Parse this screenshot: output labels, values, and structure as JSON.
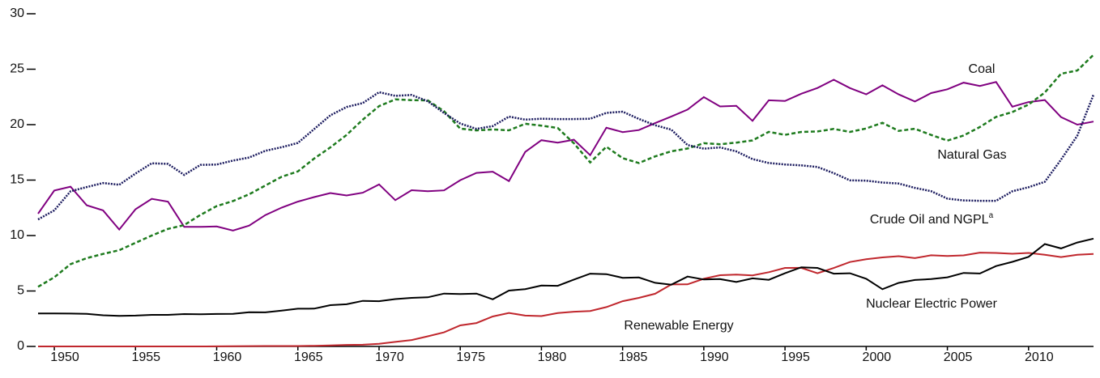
{
  "chart_data": {
    "type": "line",
    "x": [
      1949,
      1950,
      1951,
      1952,
      1953,
      1954,
      1955,
      1956,
      1957,
      1958,
      1959,
      1960,
      1961,
      1962,
      1963,
      1964,
      1965,
      1966,
      1967,
      1968,
      1969,
      1970,
      1971,
      1972,
      1973,
      1974,
      1975,
      1976,
      1977,
      1978,
      1979,
      1980,
      1981,
      1982,
      1983,
      1984,
      1985,
      1986,
      1987,
      1988,
      1989,
      1990,
      1991,
      1992,
      1993,
      1994,
      1995,
      1996,
      1997,
      1998,
      1999,
      2000,
      2001,
      2002,
      2003,
      2004,
      2005,
      2006,
      2007,
      2008,
      2009,
      2010,
      2011,
      2012,
      2013,
      2014
    ],
    "xlim": [
      1949,
      2014
    ],
    "xticks": [
      1950,
      1955,
      1960,
      1965,
      1970,
      1975,
      1980,
      1985,
      1990,
      1995,
      2000,
      2005,
      2010
    ],
    "ylim": [
      0,
      30
    ],
    "yticks": [
      0,
      5,
      10,
      15,
      20,
      25,
      30
    ],
    "footnote_mark": "a",
    "series": [
      {
        "name": "Coal",
        "color": "#800080",
        "style": "solid",
        "values": [
          11.97,
          14.06,
          14.41,
          12.73,
          12.27,
          10.54,
          12.37,
          13.31,
          13.06,
          10.78,
          10.78,
          10.82,
          10.45,
          10.9,
          11.85,
          12.52,
          13.06,
          13.47,
          13.83,
          13.61,
          13.86,
          14.61,
          13.19,
          14.09,
          13.99,
          14.07,
          14.99,
          15.65,
          15.76,
          14.91,
          17.54,
          18.6,
          18.38,
          18.64,
          17.25,
          19.72,
          19.33,
          19.51,
          20.14,
          20.74,
          21.36,
          22.49,
          21.64,
          21.69,
          20.34,
          22.2,
          22.13,
          22.79,
          23.31,
          24.05,
          23.3,
          22.74,
          23.55,
          22.73,
          22.09,
          22.85,
          23.19,
          23.79,
          23.49,
          23.85,
          21.62,
          22.04,
          22.22,
          20.68,
          20,
          20.28
        ]
      },
      {
        "name": "Natural Gas",
        "color": "#1e7b1e",
        "style": "dashed",
        "values": [
          5.38,
          6.23,
          7.42,
          7.96,
          8.34,
          8.68,
          9.34,
          10,
          10.6,
          10.94,
          11.86,
          12.66,
          13.11,
          13.72,
          14.51,
          15.3,
          15.78,
          16.94,
          17.95,
          19.07,
          20.45,
          21.67,
          22.28,
          22.21,
          22.19,
          21.21,
          19.64,
          19.48,
          19.57,
          19.49,
          20.08,
          19.91,
          19.7,
          18.32,
          16.59,
          18.01,
          16.98,
          16.54,
          17.14,
          17.6,
          17.85,
          18.33,
          18.23,
          18.38,
          18.58,
          19.35,
          19.08,
          19.34,
          19.39,
          19.61,
          19.34,
          19.66,
          20.17,
          19.44,
          19.63,
          19.07,
          18.56,
          19.02,
          19.79,
          20.7,
          21.14,
          21.81,
          22.9,
          24.59,
          24.88,
          26.3
        ]
      },
      {
        "name": "Crude Oil and NGPL",
        "color": "#1a1a5e",
        "style": "dotted",
        "values": [
          11.45,
          12.27,
          13.99,
          14.37,
          14.74,
          14.58,
          15.59,
          16.52,
          16.46,
          15.47,
          16.37,
          16.4,
          16.76,
          17.04,
          17.64,
          17.96,
          18.35,
          19.6,
          20.84,
          21.59,
          21.95,
          22.93,
          22.6,
          22.68,
          22.11,
          21.05,
          20.1,
          19.62,
          19.87,
          20.72,
          20.45,
          20.53,
          20.5,
          20.5,
          20.53,
          21.06,
          21.17,
          20.52,
          19.95,
          19.55,
          18.16,
          17.83,
          17.95,
          17.59,
          16.9,
          16.54,
          16.41,
          16.33,
          16.18,
          15.63,
          14.98,
          14.95,
          14.78,
          14.69,
          14.3,
          14,
          13.33,
          13.17,
          13.13,
          13.13,
          13.99,
          14.36,
          14.85,
          16.85,
          19.01,
          22.7
        ]
      },
      {
        "name": "Nuclear Electric Power",
        "color": "#c0272d",
        "style": "solid",
        "values": [
          0,
          0,
          0,
          0,
          0,
          0,
          0,
          0,
          0,
          0,
          0,
          0.01,
          0.02,
          0.03,
          0.04,
          0.04,
          0.04,
          0.06,
          0.09,
          0.14,
          0.15,
          0.24,
          0.41,
          0.58,
          0.91,
          1.27,
          1.9,
          2.11,
          2.7,
          3.02,
          2.78,
          2.74,
          3.01,
          3.13,
          3.2,
          3.55,
          4.08,
          4.38,
          4.75,
          5.59,
          5.6,
          6.1,
          6.42,
          6.48,
          6.41,
          6.69,
          7.08,
          7.09,
          6.6,
          7.07,
          7.61,
          7.86,
          8.03,
          8.14,
          7.96,
          8.22,
          8.16,
          8.21,
          8.46,
          8.43,
          8.36,
          8.43,
          8.27,
          8.06,
          8.27,
          8.34
        ]
      },
      {
        "name": "Renewable Energy",
        "color": "#000000",
        "style": "solid",
        "values": [
          2.97,
          2.98,
          2.96,
          2.94,
          2.81,
          2.75,
          2.78,
          2.85,
          2.85,
          2.92,
          2.9,
          2.93,
          2.94,
          3.09,
          3.07,
          3.23,
          3.4,
          3.41,
          3.72,
          3.8,
          4.11,
          4.08,
          4.27,
          4.38,
          4.43,
          4.77,
          4.72,
          4.77,
          4.25,
          5.04,
          5.17,
          5.49,
          5.47,
          6.03,
          6.56,
          6.52,
          6.19,
          6.22,
          5.74,
          5.57,
          6.3,
          6.04,
          6.07,
          5.82,
          6.14,
          6.01,
          6.6,
          7.14,
          7.08,
          6.56,
          6.6,
          6.1,
          5.16,
          5.73,
          5.99,
          6.07,
          6.23,
          6.63,
          6.58,
          7.25,
          7.63,
          8.08,
          9.23,
          8.84,
          9.37,
          9.72
        ]
      }
    ]
  }
}
